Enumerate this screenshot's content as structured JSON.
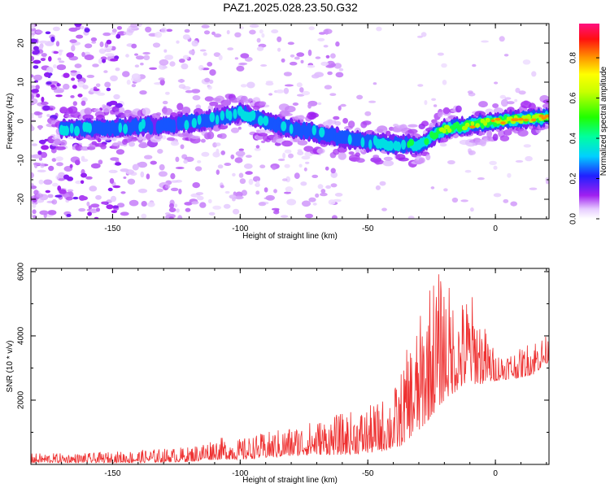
{
  "title": "PAZ1.2025.028.23.50.G32",
  "chart_data": [
    {
      "type": "heatmap",
      "xlabel": "Height of straight line (km)",
      "ylabel": "Frequency (Hz)",
      "xlim": [
        -182,
        21
      ],
      "ylim": [
        -25,
        25
      ],
      "xticks": [
        -150,
        -100,
        -50,
        0
      ],
      "yticks": [
        -20,
        -10,
        0,
        10,
        20
      ],
      "colorbar": {
        "label": "Normalized spectral amplitude",
        "range": [
          0,
          0.97
        ],
        "ticks": [
          0.0,
          0.2,
          0.4,
          0.6,
          0.8
        ],
        "colormap": "rainbow (white-violet-blue-cyan-green-yellow-orange-red-magenta)"
      },
      "ridge": {
        "description_points": [
          {
            "x": -172,
            "freq": -2,
            "amp": 0.35
          },
          {
            "x": -160,
            "freq": -2,
            "amp": 0.3
          },
          {
            "x": -145,
            "freq": -1.5,
            "amp": 0.3
          },
          {
            "x": -130,
            "freq": -1,
            "amp": 0.25
          },
          {
            "x": -115,
            "freq": 0,
            "amp": 0.3
          },
          {
            "x": -100,
            "freq": 2,
            "amp": 0.35
          },
          {
            "x": -85,
            "freq": -1,
            "amp": 0.3
          },
          {
            "x": -70,
            "freq": -3,
            "amp": 0.3
          },
          {
            "x": -55,
            "freq": -5,
            "amp": 0.3
          },
          {
            "x": -40,
            "freq": -6,
            "amp": 0.35
          },
          {
            "x": -30,
            "freq": -6,
            "amp": 0.4
          },
          {
            "x": -20,
            "freq": -2,
            "amp": 0.55
          },
          {
            "x": -10,
            "freq": -1,
            "amp": 0.65
          },
          {
            "x": 0,
            "freq": 0,
            "amp": 0.75
          },
          {
            "x": 10,
            "freq": 0.5,
            "amp": 0.85
          },
          {
            "x": 20,
            "freq": 1,
            "amp": 0.8
          }
        ]
      }
    },
    {
      "type": "line",
      "xlabel": "Height of straight line (km)",
      "ylabel": "SNR (10 * v/v)",
      "xlim": [
        -182,
        21
      ],
      "ylim": [
        0,
        6100
      ],
      "xticks": [
        -150,
        -100,
        -50,
        0
      ],
      "yticks": [
        2000,
        4000,
        6000
      ],
      "series": [
        {
          "color": "#ee3030",
          "envelope": [
            {
              "x": -182,
              "low": 50,
              "high": 350
            },
            {
              "x": -160,
              "low": 50,
              "high": 350
            },
            {
              "x": -140,
              "low": 50,
              "high": 450
            },
            {
              "x": -120,
              "low": 80,
              "high": 550
            },
            {
              "x": -110,
              "low": 150,
              "high": 850
            },
            {
              "x": -100,
              "low": 150,
              "high": 800
            },
            {
              "x": -90,
              "low": 200,
              "high": 1000
            },
            {
              "x": -80,
              "low": 250,
              "high": 1200
            },
            {
              "x": -70,
              "low": 300,
              "high": 1400
            },
            {
              "x": -60,
              "low": 300,
              "high": 1600
            },
            {
              "x": -50,
              "low": 350,
              "high": 1800
            },
            {
              "x": -45,
              "low": 400,
              "high": 2000
            },
            {
              "x": -38,
              "low": 500,
              "high": 2600
            },
            {
              "x": -34,
              "low": 800,
              "high": 3800
            },
            {
              "x": -30,
              "low": 1000,
              "high": 4500
            },
            {
              "x": -25,
              "low": 1500,
              "high": 6000
            },
            {
              "x": -20,
              "low": 2000,
              "high": 6000
            },
            {
              "x": -15,
              "low": 2300,
              "high": 5000
            },
            {
              "x": -10,
              "low": 2500,
              "high": 5500
            },
            {
              "x": -5,
              "low": 2500,
              "high": 4500
            },
            {
              "x": 0,
              "low": 2600,
              "high": 3500
            },
            {
              "x": 10,
              "low": 2700,
              "high": 3600
            },
            {
              "x": 15,
              "low": 2800,
              "high": 4000
            },
            {
              "x": 21,
              "low": 3200,
              "high": 4000
            }
          ]
        }
      ]
    }
  ]
}
